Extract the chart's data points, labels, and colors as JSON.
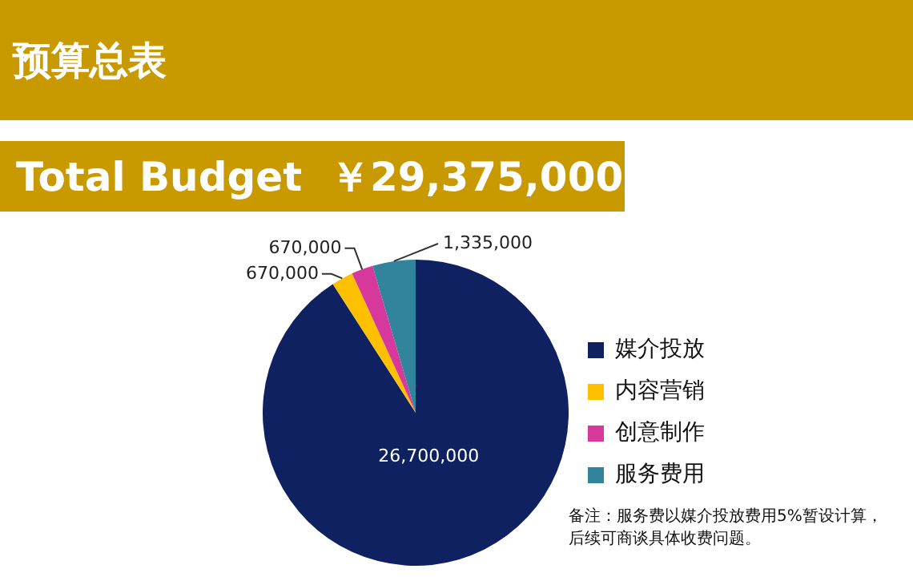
{
  "chart_data": {
    "type": "pie",
    "title": "预算总表",
    "subtitle": "Total Budget  ￥29,375,000",
    "categories": [
      "媒介投放",
      "内容营销",
      "创意制作",
      "服务费用"
    ],
    "values": [
      26700000,
      670000,
      670000,
      1335000
    ],
    "colors": [
      "#0f2160",
      "#ffc000",
      "#d6399b",
      "#31849b"
    ],
    "value_labels": [
      "26,700,000",
      "670,000",
      "670,000",
      "1,335,000"
    ],
    "legend": "right",
    "annotations": [
      "备注：服务费以媒介投放费用5%暂设计算，后续可商谈具体收费问题。"
    ]
  }
}
